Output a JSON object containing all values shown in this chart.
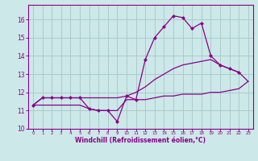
{
  "xlabel": "Windchill (Refroidissement éolien,°C)",
  "background_color": "#cce8e8",
  "grid_color": "#aacccc",
  "line_color": "#880088",
  "xlim": [
    -0.5,
    23.5
  ],
  "ylim": [
    10,
    16.8
  ],
  "yticks": [
    10,
    11,
    12,
    13,
    14,
    15,
    16
  ],
  "xticks": [
    0,
    1,
    2,
    3,
    4,
    5,
    6,
    7,
    8,
    9,
    10,
    11,
    12,
    13,
    14,
    15,
    16,
    17,
    18,
    19,
    20,
    21,
    22,
    23
  ],
  "hours": [
    0,
    1,
    2,
    3,
    4,
    5,
    6,
    7,
    8,
    9,
    10,
    11,
    12,
    13,
    14,
    15,
    16,
    17,
    18,
    19,
    20,
    21,
    22,
    23
  ],
  "actual": [
    11.3,
    11.7,
    11.7,
    11.7,
    11.7,
    11.7,
    11.1,
    11.0,
    11.0,
    10.4,
    11.8,
    11.6,
    13.8,
    15.0,
    15.6,
    16.2,
    16.1,
    15.5,
    15.8,
    14.0,
    13.5,
    13.3,
    13.1,
    null
  ],
  "line_max": [
    11.3,
    11.7,
    11.7,
    11.7,
    11.7,
    11.7,
    11.7,
    11.7,
    11.7,
    11.7,
    11.8,
    12.0,
    12.3,
    12.7,
    13.0,
    13.3,
    13.5,
    13.6,
    13.7,
    13.8,
    13.5,
    13.3,
    13.1,
    12.6
  ],
  "line_min": [
    11.3,
    11.3,
    11.3,
    11.3,
    11.3,
    11.3,
    11.1,
    11.0,
    11.0,
    11.0,
    11.6,
    11.6,
    11.6,
    11.7,
    11.8,
    11.8,
    11.9,
    11.9,
    11.9,
    12.0,
    12.0,
    12.1,
    12.2,
    12.6
  ]
}
